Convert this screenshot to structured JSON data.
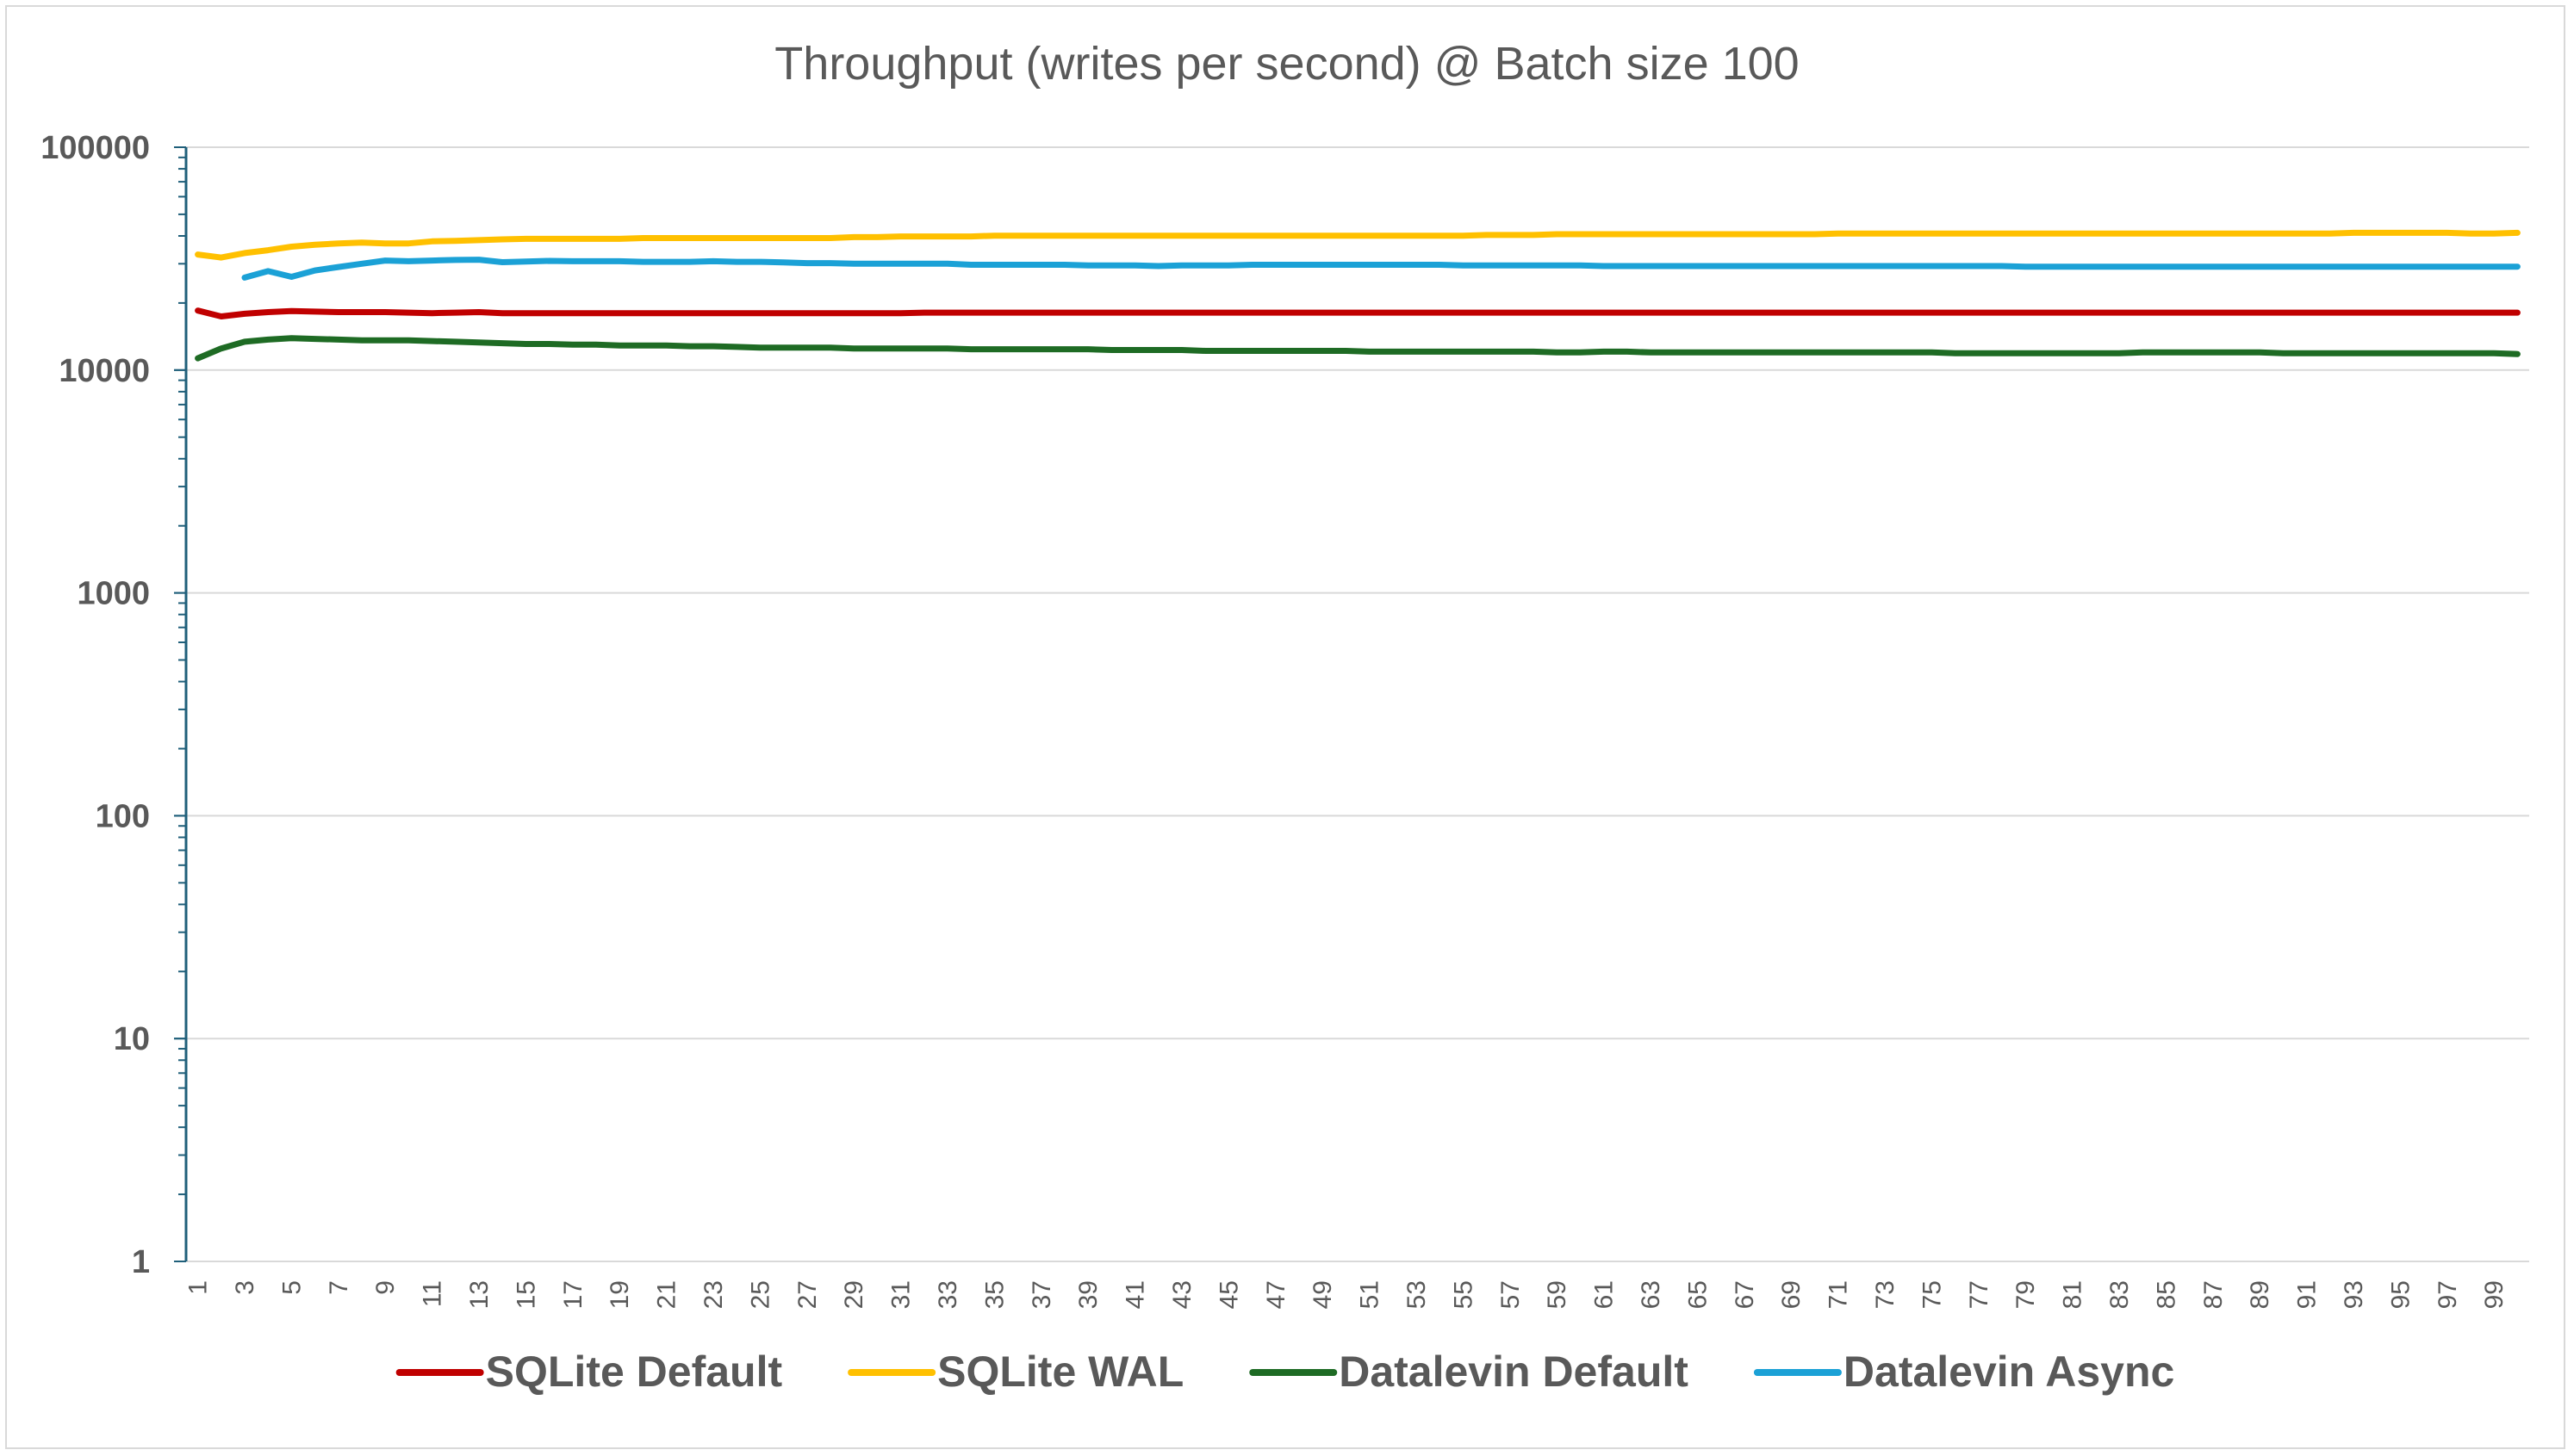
{
  "chart_data": {
    "type": "line",
    "title": "Throughput (writes per second) @ Batch size 100",
    "xlabel": "",
    "ylabel": "",
    "y_scale": "log",
    "ylim": [
      1,
      100000
    ],
    "y_ticks": [
      "1",
      "10",
      "100",
      "1000",
      "10000",
      "100000"
    ],
    "x": [
      1,
      2,
      3,
      4,
      5,
      6,
      7,
      8,
      9,
      10,
      11,
      12,
      13,
      14,
      15,
      16,
      17,
      18,
      19,
      20,
      21,
      22,
      23,
      24,
      25,
      26,
      27,
      28,
      29,
      30,
      31,
      32,
      33,
      34,
      35,
      36,
      37,
      38,
      39,
      40,
      41,
      42,
      43,
      44,
      45,
      46,
      47,
      48,
      49,
      50,
      51,
      52,
      53,
      54,
      55,
      56,
      57,
      58,
      59,
      60,
      61,
      62,
      63,
      64,
      65,
      66,
      67,
      68,
      69,
      70,
      71,
      72,
      73,
      74,
      75,
      76,
      77,
      78,
      79,
      80,
      81,
      82,
      83,
      84,
      85,
      86,
      87,
      88,
      89,
      90,
      91,
      92,
      93,
      94,
      95,
      96,
      97,
      98,
      99,
      100
    ],
    "x_tick_labels": [
      "1",
      "3",
      "5",
      "7",
      "9",
      "11",
      "13",
      "15",
      "17",
      "19",
      "21",
      "23",
      "25",
      "27",
      "29",
      "31",
      "33",
      "35",
      "37",
      "39",
      "41",
      "43",
      "45",
      "47",
      "49",
      "51",
      "53",
      "55",
      "57",
      "59",
      "61",
      "63",
      "65",
      "67",
      "69",
      "71",
      "73",
      "75",
      "77",
      "79",
      "81",
      "83",
      "85",
      "87",
      "89",
      "91",
      "93",
      "95",
      "97",
      "99"
    ],
    "grid": true,
    "legend_position": "bottom",
    "series": [
      {
        "name": "SQLite Default",
        "color": "#c00000",
        "values": [
          18500,
          17400,
          17900,
          18200,
          18400,
          18300,
          18200,
          18200,
          18200,
          18100,
          18000,
          18100,
          18200,
          18000,
          18000,
          18000,
          18000,
          18000,
          18000,
          18000,
          18000,
          18000,
          18000,
          18000,
          18000,
          18000,
          18000,
          18000,
          18000,
          18000,
          18000,
          18100,
          18100,
          18100,
          18100,
          18100,
          18100,
          18100,
          18100,
          18100,
          18100,
          18100,
          18100,
          18100,
          18100,
          18100,
          18100,
          18100,
          18100,
          18100,
          18100,
          18100,
          18100,
          18100,
          18100,
          18100,
          18100,
          18100,
          18100,
          18100,
          18100,
          18100,
          18100,
          18100,
          18100,
          18100,
          18100,
          18100,
          18100,
          18100,
          18100,
          18100,
          18100,
          18100,
          18100,
          18100,
          18100,
          18100,
          18100,
          18100,
          18100,
          18100,
          18100,
          18100,
          18100,
          18100,
          18100,
          18100,
          18100,
          18100,
          18100,
          18100,
          18100,
          18100,
          18100,
          18100,
          18100,
          18100,
          18100,
          18100
        ]
      },
      {
        "name": "SQLite WAL",
        "color": "#ffc000",
        "values": [
          33000,
          32000,
          33500,
          34500,
          35800,
          36500,
          37000,
          37300,
          37000,
          37000,
          37800,
          38000,
          38300,
          38600,
          38800,
          38800,
          38800,
          38800,
          38800,
          39100,
          39100,
          39100,
          39100,
          39100,
          39100,
          39100,
          39100,
          39100,
          39500,
          39500,
          39800,
          39800,
          39800,
          39800,
          40100,
          40100,
          40100,
          40100,
          40100,
          40100,
          40100,
          40100,
          40100,
          40100,
          40100,
          40100,
          40100,
          40100,
          40100,
          40100,
          40100,
          40100,
          40100,
          40100,
          40100,
          40400,
          40400,
          40400,
          40700,
          40700,
          40700,
          40700,
          40700,
          40700,
          40700,
          40700,
          40700,
          40700,
          40700,
          40700,
          41000,
          41000,
          41000,
          41000,
          41000,
          41000,
          41000,
          41000,
          41000,
          41000,
          41000,
          41000,
          41000,
          41000,
          41000,
          41000,
          41000,
          41000,
          41000,
          41000,
          41000,
          41000,
          41300,
          41300,
          41300,
          41300,
          41300,
          41000,
          41000,
          41300
        ]
      },
      {
        "name": "Datalevin Default",
        "color": "#1e6b24",
        "values": [
          11300,
          12500,
          13400,
          13700,
          13900,
          13800,
          13700,
          13600,
          13600,
          13600,
          13500,
          13400,
          13300,
          13200,
          13100,
          13100,
          13000,
          13000,
          12900,
          12900,
          12900,
          12800,
          12800,
          12700,
          12600,
          12600,
          12600,
          12600,
          12500,
          12500,
          12500,
          12500,
          12500,
          12400,
          12400,
          12400,
          12400,
          12400,
          12400,
          12300,
          12300,
          12300,
          12300,
          12200,
          12200,
          12200,
          12200,
          12200,
          12200,
          12200,
          12100,
          12100,
          12100,
          12100,
          12100,
          12100,
          12100,
          12100,
          12000,
          12000,
          12100,
          12100,
          12000,
          12000,
          12000,
          12000,
          12000,
          12000,
          12000,
          12000,
          12000,
          12000,
          12000,
          12000,
          12000,
          11900,
          11900,
          11900,
          11900,
          11900,
          11900,
          11900,
          11900,
          12000,
          12000,
          12000,
          12000,
          12000,
          12000,
          11900,
          11900,
          11900,
          11900,
          11900,
          11900,
          11900,
          11900,
          11900,
          11900,
          11800
        ]
      },
      {
        "name": "Datalevin Async",
        "color": "#1ba1d6",
        "values": [
          null,
          null,
          26000,
          27800,
          26200,
          28000,
          29000,
          30000,
          31000,
          30800,
          31000,
          31200,
          31300,
          30500,
          30700,
          30900,
          30800,
          30800,
          30800,
          30600,
          30600,
          30600,
          30800,
          30600,
          30600,
          30400,
          30200,
          30200,
          30000,
          30000,
          30000,
          30000,
          30000,
          29700,
          29700,
          29700,
          29700,
          29700,
          29500,
          29500,
          29500,
          29300,
          29500,
          29500,
          29500,
          29700,
          29700,
          29700,
          29700,
          29700,
          29700,
          29700,
          29700,
          29700,
          29500,
          29500,
          29500,
          29500,
          29500,
          29500,
          29300,
          29300,
          29300,
          29300,
          29300,
          29300,
          29300,
          29300,
          29300,
          29300,
          29300,
          29300,
          29300,
          29300,
          29300,
          29300,
          29300,
          29300,
          29100,
          29100,
          29100,
          29100,
          29100,
          29100,
          29100,
          29100,
          29100,
          29100,
          29100,
          29100,
          29100,
          29100,
          29100,
          29100,
          29100,
          29100,
          29100,
          29100,
          29100,
          29100
        ]
      }
    ]
  }
}
